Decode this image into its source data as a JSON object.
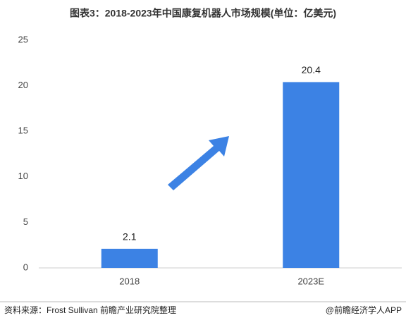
{
  "chart_data": {
    "type": "bar",
    "title": "图表3：2018-2023年中国康复机器人市场规模(单位：亿美元)",
    "categories": [
      "2018",
      "2023E"
    ],
    "values": [
      2.1,
      20.4
    ],
    "color": "#3c82e4",
    "ylim": [
      0,
      25
    ],
    "yticks": [
      0,
      5,
      10,
      15,
      20,
      25
    ],
    "grid": false,
    "source": "资料来源：Frost Sullivan 前瞻产业研究院整理",
    "credit": "@前瞻经济学人APP"
  }
}
